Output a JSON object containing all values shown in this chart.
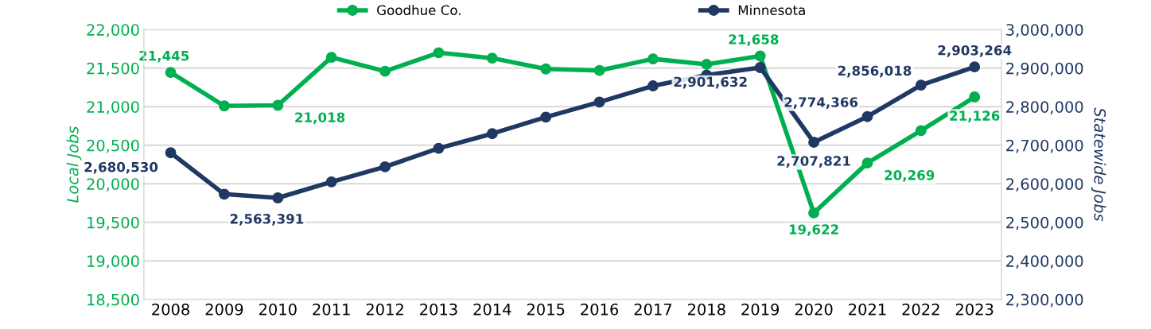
{
  "chart_data": {
    "type": "line",
    "categories": [
      "2008",
      "2009",
      "2010",
      "2011",
      "2012",
      "2013",
      "2014",
      "2015",
      "2016",
      "2017",
      "2018",
      "2019",
      "2020",
      "2021",
      "2022",
      "2023"
    ],
    "series": [
      {
        "name": "Goodhue Co.",
        "color": "#00b050",
        "values": [
          21445,
          21010,
          21018,
          21640,
          21460,
          21700,
          21630,
          21490,
          21470,
          21620,
          21550,
          21658,
          19622,
          20269,
          20690,
          21126
        ],
        "value_labels": [
          "21,445",
          null,
          "21,018",
          null,
          null,
          null,
          null,
          null,
          null,
          null,
          null,
          "21,658",
          "19,622",
          "20,269",
          null,
          "21,126"
        ]
      },
      {
        "name": "Minnesota",
        "color": "#203864",
        "axis": "y2",
        "values": [
          2680530,
          2573000,
          2563391,
          2605000,
          2644000,
          2692000,
          2730000,
          2773000,
          2812000,
          2854000,
          2882000,
          2901632,
          2707821,
          2774366,
          2856018,
          2903264
        ],
        "value_labels": [
          "2,680,530",
          null,
          "2,563,391",
          null,
          null,
          null,
          null,
          null,
          null,
          null,
          null,
          "2,901,632",
          "2,707,821",
          "2,774,366",
          "2,856,018",
          "2,903,264"
        ]
      }
    ],
    "ylabel": "Local Jobs",
    "y2label": "Statewide Jobs",
    "ylim": [
      18500,
      22000
    ],
    "yticks": [
      {
        "value": 18500,
        "label": "18,500"
      },
      {
        "value": 19000,
        "label": "19,000"
      },
      {
        "value": 19500,
        "label": "19,500"
      },
      {
        "value": 20000,
        "label": "20,000"
      },
      {
        "value": 20500,
        "label": "20,500"
      },
      {
        "value": 21000,
        "label": "21,000"
      },
      {
        "value": 21500,
        "label": "21,500"
      },
      {
        "value": 22000,
        "label": "22,000"
      }
    ],
    "y2lim": [
      2300000,
      3000000
    ],
    "y2ticks": [
      {
        "value": 2300000,
        "label": "2,300,000"
      },
      {
        "value": 2400000,
        "label": "2,400,000"
      },
      {
        "value": 2500000,
        "label": "2,500,000"
      },
      {
        "value": 2600000,
        "label": "2,600,000"
      },
      {
        "value": 2700000,
        "label": "2,700,000"
      },
      {
        "value": 2800000,
        "label": "2,800,000"
      },
      {
        "value": 2900000,
        "label": "2,900,000"
      },
      {
        "value": 3000000,
        "label": "3,000,000"
      }
    ],
    "grid": "y",
    "legend": "top",
    "marker": "circle",
    "line_style": "solid"
  }
}
